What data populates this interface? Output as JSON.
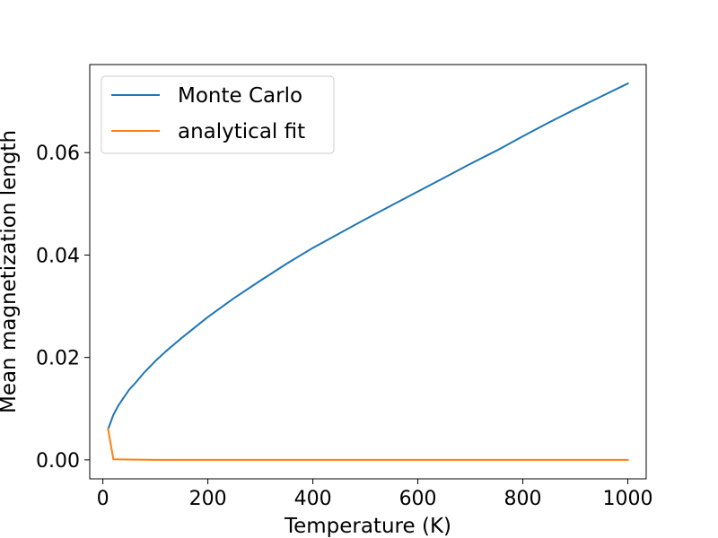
{
  "chart_data": {
    "type": "line",
    "title": "",
    "xlabel": "Temperature (K)",
    "ylabel": "Mean magnetization length",
    "xlim": [
      -25,
      1035
    ],
    "ylim": [
      -0.0037,
      0.0772
    ],
    "xticks": [
      0,
      200,
      400,
      600,
      800,
      1000
    ],
    "xtick_labels": [
      "0",
      "200",
      "400",
      "600",
      "800",
      "1000"
    ],
    "yticks": [
      0.0,
      0.02,
      0.04,
      0.06
    ],
    "ytick_labels": [
      "0.00",
      "0.02",
      "0.04",
      "0.06"
    ],
    "grid": false,
    "legend": {
      "position": "upper-left"
    },
    "series": [
      {
        "name": "Monte Carlo",
        "color": "#1f77b4",
        "x": [
          10,
          20,
          30,
          40,
          50,
          60,
          80,
          100,
          120,
          150,
          200,
          250,
          300,
          350,
          400,
          450,
          500,
          550,
          600,
          650,
          700,
          750,
          800,
          850,
          900,
          950,
          1000
        ],
        "y": [
          0.006,
          0.0088,
          0.0107,
          0.0122,
          0.0137,
          0.0148,
          0.0172,
          0.0193,
          0.0212,
          0.0238,
          0.0279,
          0.0316,
          0.035,
          0.0383,
          0.0414,
          0.0442,
          0.047,
          0.0497,
          0.0524,
          0.0551,
          0.0578,
          0.0604,
          0.0632,
          0.0659,
          0.0685,
          0.071,
          0.0735
        ]
      },
      {
        "name": "analytical fit",
        "color": "#ff7f0e",
        "x": [
          10,
          20,
          100,
          200,
          300,
          400,
          500,
          600,
          700,
          800,
          900,
          1000
        ],
        "y": [
          0.006,
          0.0001,
          0.0,
          0.0,
          0.0,
          0.0,
          0.0,
          0.0,
          0.0,
          0.0,
          0.0,
          0.0
        ]
      }
    ]
  }
}
